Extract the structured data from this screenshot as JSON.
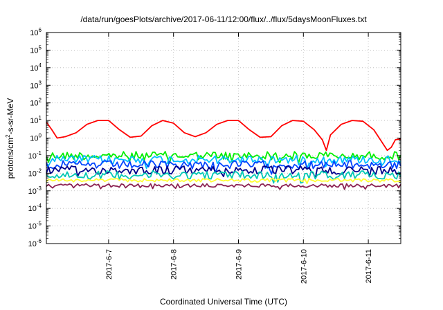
{
  "chart_data": {
    "type": "line",
    "title": "/data/run/goesPlots/archive/2017-06-11/12:00/flux/../flux/5daysMoonFluxes.txt",
    "xlabel": "Coordinated Universal Time (UTC)",
    "ylabel": "protons/cm^2-s-sr-MeV",
    "y_scale": "log",
    "ylim_exponents": [
      -6,
      6
    ],
    "y_ticks": [
      {
        "base": "10",
        "exp": "-6"
      },
      {
        "base": "10",
        "exp": "-5"
      },
      {
        "base": "10",
        "exp": "-4"
      },
      {
        "base": "10",
        "exp": "-3"
      },
      {
        "base": "10",
        "exp": "-2"
      },
      {
        "base": "10",
        "exp": "-1"
      },
      {
        "base": "10",
        "exp": "0"
      },
      {
        "base": "10",
        "exp": "1"
      },
      {
        "base": "10",
        "exp": "2"
      },
      {
        "base": "10",
        "exp": "3"
      },
      {
        "base": "10",
        "exp": "4"
      },
      {
        "base": "10",
        "exp": "5"
      },
      {
        "base": "10",
        "exp": "6"
      }
    ],
    "xlim": [
      "2017-06-06 01:00",
      "2017-06-11 12:00"
    ],
    "x_ticks": [
      "2017-6-7",
      "2017-6-8",
      "2017-6-9",
      "2017-6-10",
      "2017-6-11"
    ],
    "x_tick_dates": [
      "2017-06-07 00:00",
      "2017-06-08 00:00",
      "2017-06-09 00:00",
      "2017-06-10 00:00",
      "2017-06-11 00:00"
    ],
    "grid": true,
    "legend": "none",
    "series": [
      {
        "color": "#ff0000",
        "x": [
          "2017-06-06 01:00",
          "2017-06-06 03:00",
          "2017-06-06 05:00",
          "2017-06-06 08:00",
          "2017-06-06 12:00",
          "2017-06-06 16:00",
          "2017-06-06 20:00",
          "2017-06-07 00:00",
          "2017-06-07 04:00",
          "2017-06-07 08:00",
          "2017-06-07 12:00",
          "2017-06-07 16:00",
          "2017-06-07 20:00",
          "2017-06-08 00:00",
          "2017-06-08 04:00",
          "2017-06-08 08:00",
          "2017-06-08 12:00",
          "2017-06-08 16:00",
          "2017-06-08 20:00",
          "2017-06-09 00:00",
          "2017-06-09 04:00",
          "2017-06-09 08:00",
          "2017-06-09 12:00",
          "2017-06-09 16:00",
          "2017-06-09 20:00",
          "2017-06-10 00:00",
          "2017-06-10 04:00",
          "2017-06-10 07:00",
          "2017-06-10 08:30",
          "2017-06-10 10:00",
          "2017-06-10 14:00",
          "2017-06-10 18:00",
          "2017-06-10 22:00",
          "2017-06-11 02:00",
          "2017-06-11 05:00",
          "2017-06-11 07:00",
          "2017-06-11 08:30",
          "2017-06-11 10:00",
          "2017-06-11 12:00"
        ],
        "y": [
          8,
          3,
          1,
          1.2,
          2,
          6,
          10,
          10,
          3,
          1.1,
          1.3,
          5,
          10,
          7,
          2,
          1.2,
          2,
          6,
          10,
          10,
          3,
          1.1,
          1.2,
          5,
          10,
          9,
          3,
          0.8,
          0.2,
          1.5,
          6,
          10,
          9,
          3,
          0.6,
          0.2,
          0.3,
          0.8,
          0.9
        ]
      },
      {
        "color": "#00ee00",
        "level": 0.1
      },
      {
        "color": "#00bfff",
        "level": 0.06
      },
      {
        "color": "#0044ff",
        "level": 0.03
      },
      {
        "color": "#00008b",
        "level": 0.015
      },
      {
        "color": "#00c8b4",
        "level": 0.008
      },
      {
        "color": "#ffff33",
        "level": 0.004
      },
      {
        "color": "#8b2252",
        "level": 0.002
      }
    ]
  }
}
